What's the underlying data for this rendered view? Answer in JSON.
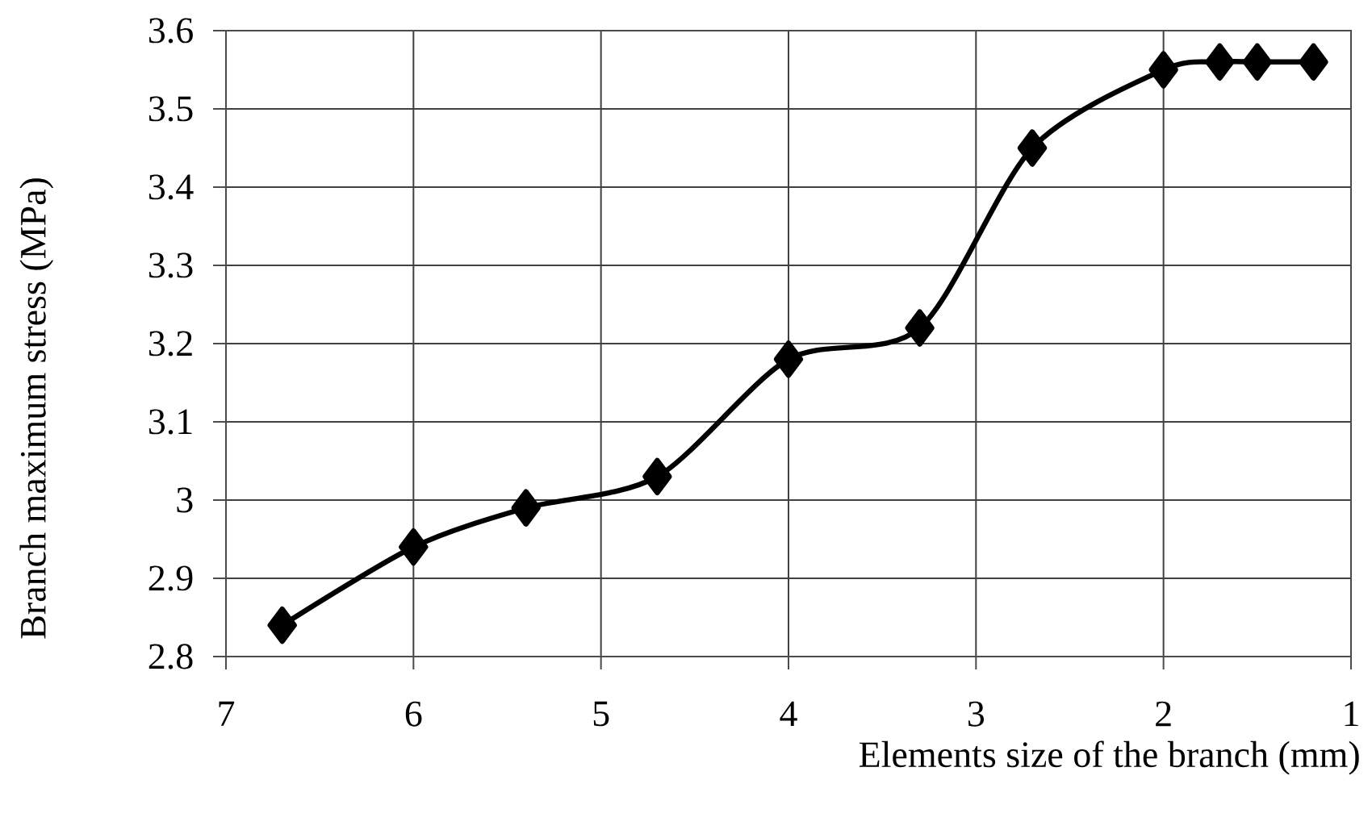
{
  "chart_data": {
    "type": "line",
    "xlabel": "Elements size of the branch (mm)",
    "ylabel": "Branch maximum stress (MPa)",
    "x": [
      6.7,
      6.0,
      5.4,
      4.7,
      4.0,
      3.3,
      2.7,
      2.0,
      1.7,
      1.5,
      1.2
    ],
    "series": [
      {
        "color": "#000000",
        "values": [
          2.84,
          2.94,
          2.99,
          3.03,
          3.18,
          3.22,
          3.45,
          3.55,
          3.56,
          3.56,
          3.56
        ]
      }
    ],
    "xlim": [
      7,
      1
    ],
    "xticks": [
      7,
      6,
      5,
      4,
      3,
      2,
      1
    ],
    "ylim": [
      2.8,
      3.6
    ],
    "yticks": [
      2.8,
      2.9,
      3,
      3.1,
      3.2,
      3.3,
      3.4,
      3.5,
      3.6
    ],
    "grid": true,
    "marker": "diamond",
    "line_style": "solid"
  }
}
